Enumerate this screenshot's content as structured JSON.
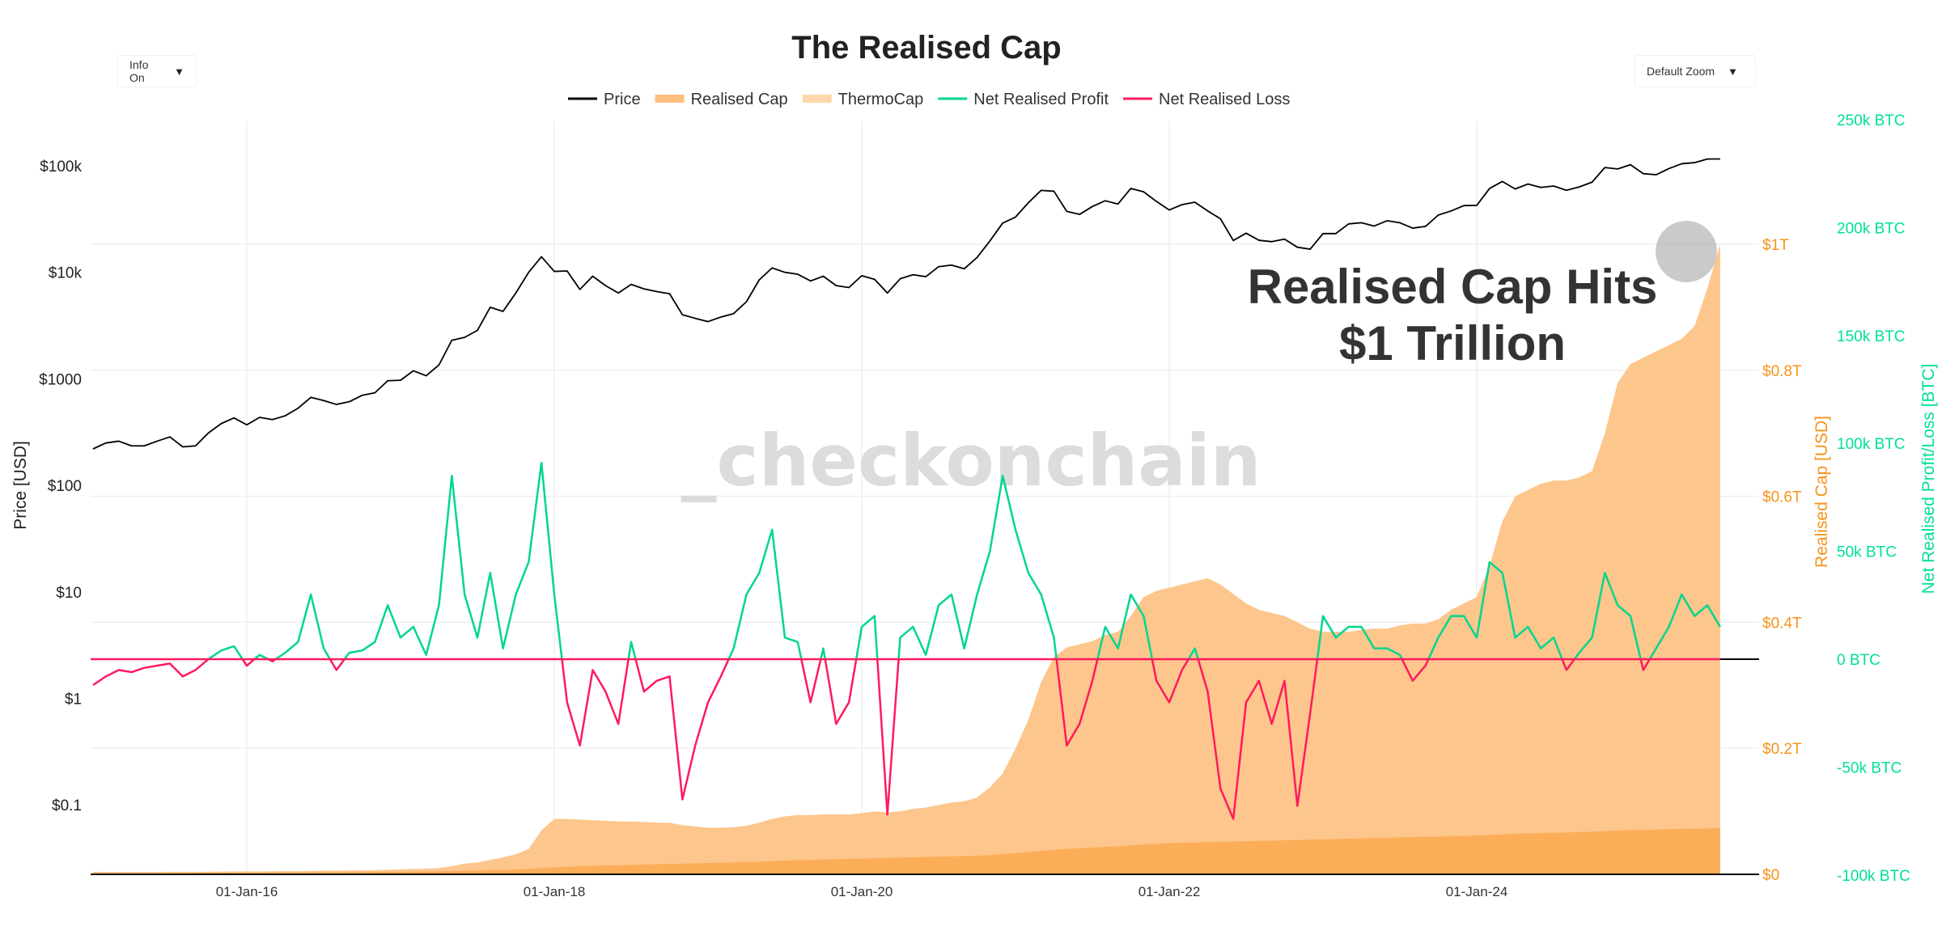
{
  "controls": {
    "info_label": "Info On",
    "zoom_label": "Default Zoom",
    "caret_icon": "caret-down-icon"
  },
  "annotation": {
    "line1": "Realised Cap Hits",
    "line2": "$1 Trillion"
  },
  "watermark": "_checkonchain",
  "chart_data": {
    "type": "line",
    "title": "The Realised Cap",
    "legend": [
      "Price",
      "Realised Cap",
      "ThermoCap",
      "Net Realised Profit",
      "Net Realised Loss"
    ],
    "legend_placement": "top-center",
    "x_start": "2015-01",
    "x_frequency": "monthly",
    "x_range": [
      "2015-01-01",
      "2025-11-15"
    ],
    "x_ticks": [
      "01-Jan-16",
      "01-Jan-18",
      "01-Jan-20",
      "01-Jan-22",
      "01-Jan-24"
    ],
    "y_left": {
      "label": "Price [USD]",
      "scale": "log",
      "ticks": [
        "$0.1",
        "$1",
        "$10",
        "$100",
        "$1000",
        "$10k",
        "$100k"
      ],
      "tick_values": [
        0.1,
        1,
        10,
        100,
        1000,
        10000,
        100000
      ]
    },
    "y_right1": {
      "label": "Realised Cap [USD]",
      "ticks": [
        "$0",
        "$0.2T",
        "$0.4T",
        "$0.6T",
        "$0.8T",
        "$1T"
      ],
      "tick_values": [
        0,
        0.2,
        0.4,
        0.6,
        0.8,
        1.0
      ],
      "unit": "trillion USD"
    },
    "y_right2": {
      "label": "Net Realised Profit/Loss [BTC]",
      "ticks": [
        "-100k BTC",
        "-50k BTC",
        "0 BTC",
        "50k BTC",
        "100k BTC",
        "150k BTC",
        "200k BTC",
        "250k BTC"
      ],
      "tick_values": [
        -100,
        -50,
        0,
        50,
        100,
        150,
        200,
        250
      ],
      "unit": "thousand BTC"
    },
    "grid": true,
    "colors": {
      "price": "#000000",
      "realised_cap": "#fdc07f",
      "thermocap": "#fca84e",
      "profit": "#00d68f",
      "loss": "#ff1a5e",
      "right1_axis": "#f7931a",
      "right2_axis": "#00e09a"
    },
    "series": [
      {
        "name": "Price",
        "unit": "USD",
        "values": [
          220,
          250,
          260,
          235,
          235,
          260,
          285,
          230,
          235,
          310,
          380,
          430,
          370,
          435,
          415,
          450,
          530,
          670,
          625,
          575,
          610,
          700,
          740,
          960,
          970,
          1190,
          1070,
          1350,
          2300,
          2450,
          2850,
          4700,
          4300,
          6400,
          10000,
          14000,
          10200,
          10300,
          6900,
          9200,
          7500,
          6400,
          7700,
          7000,
          6600,
          6300,
          4000,
          3700,
          3450,
          3800,
          4100,
          5300,
          8500,
          11000,
          10000,
          9600,
          8300,
          9200,
          7500,
          7200,
          9300,
          8600,
          6400,
          8700,
          9500,
          9100,
          11300,
          11700,
          10800,
          13800,
          19700,
          29000,
          33000,
          45000,
          58800,
          57700,
          37300,
          35000,
          41500,
          47000,
          43800,
          61300,
          57000,
          46300,
          38500,
          43200,
          45500,
          37700,
          31800,
          19900,
          23300,
          20000,
          19400,
          20500,
          17200,
          16500,
          23100,
          23100,
          28500,
          29200,
          27200,
          30500,
          29200,
          26000,
          27000,
          34500,
          37700,
          42300,
          42500,
          61200,
          71300,
          60600,
          67500,
          62700,
          64600,
          58900,
          63300,
          70200,
          96400,
          93400,
          102400,
          84400,
          82500,
          94200,
          104600,
          107100,
          115800,
          116000
        ]
      },
      {
        "name": "Realised Cap",
        "unit": "billion USD",
        "values": [
          4.0,
          3.9,
          3.9,
          3.9,
          3.9,
          3.9,
          4.0,
          4.0,
          4.0,
          4.1,
          4.3,
          4.5,
          4.6,
          4.7,
          4.8,
          4.9,
          5.0,
          5.5,
          5.9,
          6.0,
          6.1,
          6.3,
          6.6,
          7.2,
          8,
          8.5,
          9,
          10,
          13,
          17,
          19,
          23,
          27,
          32,
          40,
          70,
          88,
          88,
          87,
          86,
          85,
          84,
          84,
          83,
          82,
          82,
          78,
          76,
          74,
          74,
          75,
          77,
          82,
          88,
          92,
          94,
          94,
          95,
          95,
          95,
          97,
          100,
          98,
          100,
          104,
          106,
          110,
          114,
          116,
          122,
          138,
          160,
          200,
          245,
          305,
          345,
          360,
          365,
          370,
          380,
          385,
          410,
          440,
          450,
          455,
          460,
          465,
          470,
          460,
          445,
          430,
          420,
          415,
          410,
          400,
          390,
          385,
          385,
          385,
          388,
          390,
          390,
          395,
          398,
          398,
          405,
          420,
          430,
          440,
          490,
          560,
          600,
          610,
          620,
          625,
          625,
          630,
          640,
          700,
          780,
          810,
          820,
          830,
          840,
          850,
          870,
          930,
          1000
        ]
      },
      {
        "name": "ThermoCap",
        "unit": "billion USD",
        "values": [
          1.5,
          1.6,
          1.7,
          1.8,
          1.9,
          2.0,
          2.1,
          2.2,
          2.3,
          2.4,
          2.5,
          2.6,
          2.7,
          2.8,
          2.9,
          3.0,
          3.1,
          3.2,
          3.3,
          3.4,
          3.5,
          3.6,
          3.7,
          3.8,
          4,
          4.2,
          4.4,
          4.6,
          5,
          5.5,
          6,
          6.5,
          7,
          7.5,
          8.5,
          10,
          11,
          12,
          13,
          13.5,
          14,
          14.5,
          15,
          15.5,
          16,
          16.5,
          17,
          17.5,
          18,
          18.5,
          19,
          19.5,
          20,
          21,
          22,
          22.5,
          23,
          23.5,
          24,
          24.5,
          25,
          25.5,
          26,
          26.5,
          27,
          27.5,
          28,
          28.5,
          29,
          29.5,
          30.5,
          32,
          33.5,
          35,
          37,
          39,
          40.5,
          41.5,
          42.5,
          43.5,
          44.5,
          46,
          47.5,
          48.5,
          49.5,
          50,
          50.5,
          51,
          51.5,
          52,
          52.5,
          53,
          53.5,
          54,
          54.5,
          55,
          55.5,
          56,
          56.5,
          57,
          57.5,
          58,
          58.5,
          59,
          59.5,
          60,
          60.5,
          61,
          61.5,
          62.5,
          63.5,
          64.5,
          65,
          65.5,
          66,
          66.5,
          67,
          67.5,
          68.5,
          69.5,
          70,
          70.5,
          71,
          71.5,
          72,
          72.5,
          73,
          73.5
        ]
      },
      {
        "name": "Net Realised Profit / Loss",
        "unit": "thousand BTC",
        "values": [
          -12,
          -8,
          -5,
          -6,
          -4,
          -3,
          -2,
          -8,
          -5,
          0,
          4,
          6,
          -3,
          2,
          -1,
          3,
          8,
          30,
          5,
          -5,
          3,
          4,
          8,
          25,
          10,
          15,
          2,
          25,
          85,
          30,
          10,
          40,
          5,
          30,
          45,
          91,
          30,
          -20,
          -40,
          -5,
          -15,
          -30,
          8,
          -15,
          -10,
          -8,
          -65,
          -40,
          -20,
          -8,
          5,
          30,
          40,
          60,
          10,
          8,
          -20,
          5,
          -30,
          -20,
          15,
          20,
          -72,
          10,
          15,
          2,
          25,
          30,
          5,
          30,
          50,
          85,
          60,
          40,
          30,
          10,
          -40,
          -30,
          -10,
          15,
          5,
          30,
          20,
          -10,
          -20,
          -5,
          5,
          -15,
          -60,
          -74,
          -20,
          -10,
          -30,
          -10,
          -68,
          -25,
          20,
          10,
          15,
          15,
          5,
          5,
          2,
          -10,
          -3,
          10,
          20,
          20,
          10,
          45,
          40,
          10,
          15,
          5,
          10,
          -5,
          3,
          10,
          40,
          25,
          20,
          -5,
          5,
          15,
          30,
          20,
          25,
          15
        ]
      }
    ]
  }
}
